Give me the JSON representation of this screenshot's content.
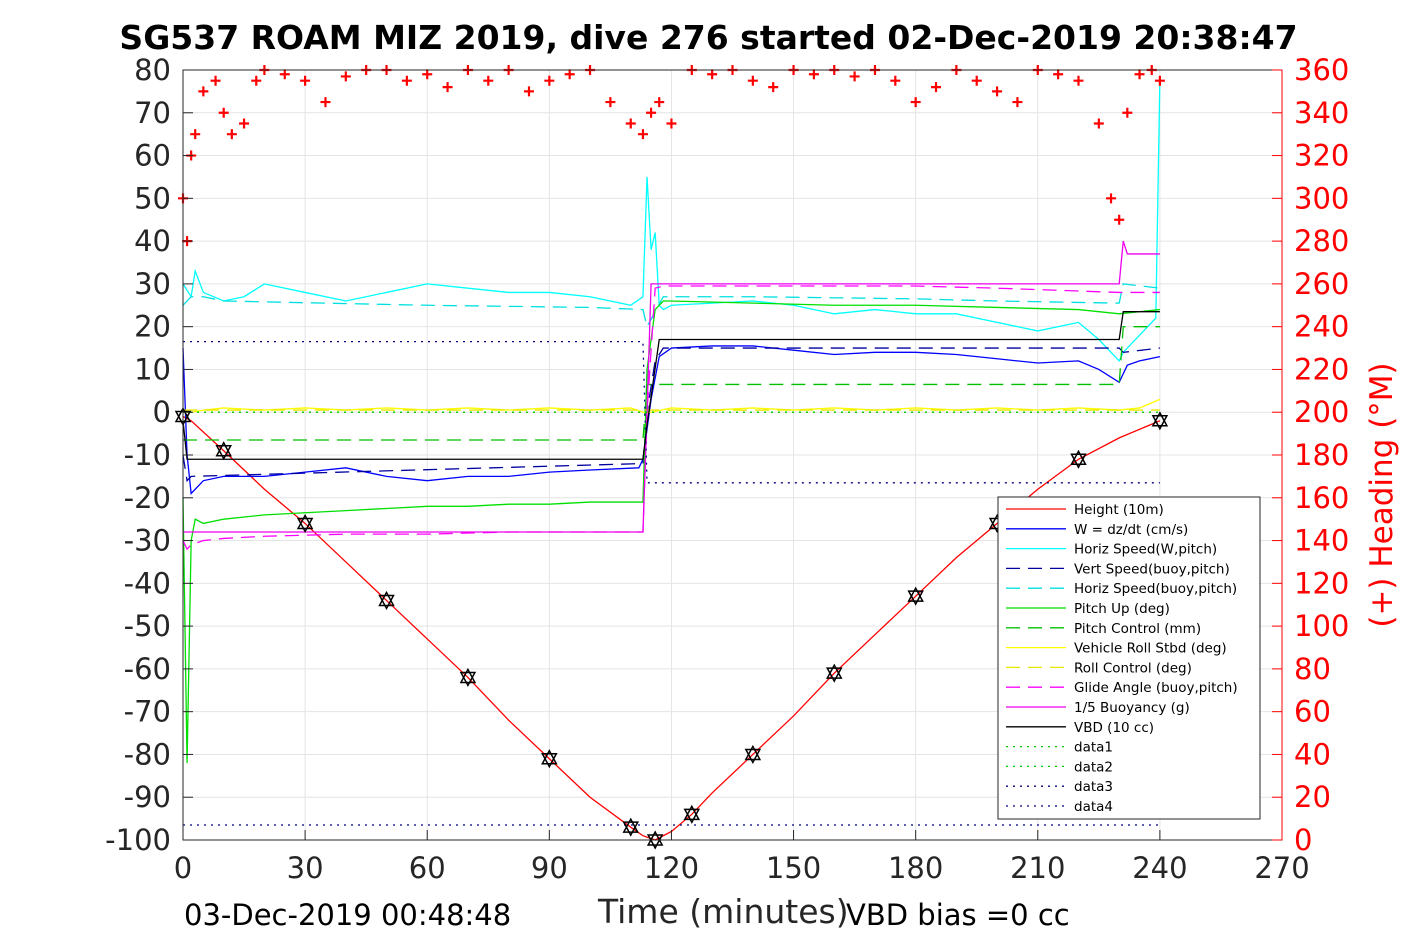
{
  "chart_data": {
    "type": "line",
    "title": "SG537 ROAM MIZ 2019, dive 276 started 02-Dec-2019 20:38:47",
    "xlabel": "Time (minutes)",
    "ylabel": "",
    "y2label": "(+) Heading (°M)",
    "xlim": [
      0,
      270
    ],
    "ylim": [
      -100,
      80
    ],
    "y2lim": [
      0,
      360
    ],
    "xticks": [
      "0",
      "30",
      "60",
      "90",
      "120",
      "150",
      "180",
      "210",
      "240",
      "270"
    ],
    "yticks": [
      "80",
      "70",
      "60",
      "50",
      "40",
      "30",
      "20",
      "10",
      "0",
      "-10",
      "-20",
      "-30",
      "-40",
      "-50",
      "-60",
      "-70",
      "-80",
      "-90",
      "-100"
    ],
    "y2ticks": [
      "360",
      "340",
      "320",
      "300",
      "280",
      "260",
      "240",
      "220",
      "200",
      "180",
      "160",
      "140",
      "120",
      "100",
      "80",
      "60",
      "40",
      "20",
      "0"
    ],
    "grid": true,
    "legend_position": "bottom-right",
    "footer_left": "03-Dec-2019 00:48:48",
    "footer_right": "VBD bias =0 cc",
    "colors": {
      "height": "#ff0000",
      "w": "#0000ff",
      "horiz_w": "#00ffff",
      "vert_buoy": "#0000a0",
      "horiz_buoy": "#00e0e0",
      "pitch": "#00e000",
      "pitch_ctrl": "#00c000",
      "roll": "#ffff00",
      "roll_ctrl": "#e8e800",
      "glide": "#ff00ff",
      "buoyancy": "#ee00ee",
      "vbd": "#000000",
      "heading": "#ff0000",
      "data12": "#00cc00",
      "data34": "#000080"
    },
    "legend": [
      {
        "label": "Height (10m)",
        "color": "#ff0000",
        "style": "solid"
      },
      {
        "label": "W = dz/dt (cm/s)",
        "color": "#0000ff",
        "style": "solid"
      },
      {
        "label": "Horiz Speed(W,pitch)",
        "color": "#00ffff",
        "style": "solid"
      },
      {
        "label": "Vert Speed(buoy,pitch)",
        "color": "#0000a0",
        "style": "dashed"
      },
      {
        "label": "Horiz Speed(buoy,pitch)",
        "color": "#00e0e0",
        "style": "dashed"
      },
      {
        "label": "Pitch Up (deg)",
        "color": "#00e000",
        "style": "solid"
      },
      {
        "label": "Pitch Control (mm)",
        "color": "#00c000",
        "style": "dashed"
      },
      {
        "label": "Vehicle Roll Stbd (deg)",
        "color": "#ffff00",
        "style": "solid"
      },
      {
        "label": "Roll Control (deg)",
        "color": "#e8e800",
        "style": "dashed"
      },
      {
        "label": "Glide Angle (buoy,pitch)",
        "color": "#ff00ff",
        "style": "dashed"
      },
      {
        "label": "1/5 Buoyancy (g)",
        "color": "#ee00ee",
        "style": "solid"
      },
      {
        "label": "VBD (10 cc)",
        "color": "#000000",
        "style": "solid"
      },
      {
        "label": "data1",
        "color": "#00cc00",
        "style": "dotted"
      },
      {
        "label": "data2",
        "color": "#00cc00",
        "style": "dotted"
      },
      {
        "label": "data3",
        "color": "#000080",
        "style": "dotted"
      },
      {
        "label": "data4",
        "color": "#000080",
        "style": "dotted"
      }
    ],
    "series": [
      {
        "name": "Height (10m)",
        "x": [
          0,
          2,
          10,
          20,
          30,
          40,
          50,
          60,
          70,
          80,
          90,
          100,
          110,
          113,
          116,
          120,
          125,
          130,
          140,
          150,
          160,
          170,
          180,
          190,
          200,
          210,
          220,
          230,
          240
        ],
        "y": [
          -1,
          -2,
          -9,
          -18,
          -26,
          -35,
          -44,
          -53,
          -62,
          -72,
          -81,
          -90,
          -97,
          -99,
          -100,
          -98,
          -94,
          -89,
          -80,
          -71,
          -61,
          -52,
          -43,
          -34,
          -26,
          -18,
          -11,
          -6,
          -2
        ]
      },
      {
        "name": "W = dz/dt (cm/s)",
        "x": [
          0,
          1,
          2,
          5,
          10,
          20,
          30,
          40,
          50,
          60,
          70,
          80,
          90,
          100,
          112,
          113,
          115,
          117,
          120,
          130,
          140,
          150,
          160,
          170,
          180,
          190,
          200,
          210,
          220,
          225,
          230,
          232,
          235,
          240
        ],
        "y": [
          15,
          -10,
          -19,
          -16,
          -15,
          -15,
          -14,
          -13,
          -15,
          -16,
          -15,
          -15,
          -14,
          -13.5,
          -13,
          -11,
          3,
          13,
          15,
          15.5,
          15.5,
          14.5,
          13.5,
          14,
          14,
          13.5,
          12.5,
          11.5,
          12,
          10,
          7,
          11,
          12,
          13
        ]
      },
      {
        "name": "Horiz Speed(W,pitch)",
        "x": [
          0,
          2,
          3,
          5,
          10,
          15,
          20,
          30,
          40,
          50,
          60,
          70,
          80,
          90,
          100,
          110,
          113,
          114,
          115,
          116,
          117,
          118,
          120,
          130,
          140,
          150,
          160,
          170,
          180,
          190,
          200,
          210,
          220,
          225,
          230,
          231,
          235,
          239,
          240
        ],
        "y": [
          30,
          27,
          33,
          28,
          26,
          27,
          30,
          28,
          26,
          28,
          30,
          29,
          28,
          28,
          27,
          25,
          27,
          55,
          38,
          42,
          25,
          24,
          25,
          25.5,
          26,
          25,
          23,
          24,
          23,
          23,
          21,
          19,
          21,
          17,
          12,
          14,
          18,
          22,
          78
        ]
      },
      {
        "name": "Vert Speed(buoy,pitch)",
        "x": [
          0,
          1,
          2,
          113,
          114,
          116,
          118,
          230,
          231,
          240
        ],
        "y": [
          -10,
          -16,
          -15,
          -12,
          0,
          12,
          15,
          15,
          14,
          15
        ]
      },
      {
        "name": "Horiz Speed(buoy,pitch)",
        "x": [
          0,
          2,
          5,
          10,
          60,
          100,
          113,
          114,
          118,
          120,
          140,
          180,
          200,
          230,
          231,
          240
        ],
        "y": [
          25,
          27,
          27,
          26,
          25,
          24.5,
          24,
          20,
          27,
          27,
          27,
          26.5,
          26,
          25.5,
          30,
          29
        ]
      },
      {
        "name": "Pitch Up (deg)",
        "x": [
          0,
          1,
          2,
          3,
          5,
          10,
          20,
          30,
          40,
          50,
          60,
          70,
          80,
          90,
          100,
          110,
          113,
          114,
          116,
          118,
          120,
          140,
          160,
          180,
          200,
          220,
          230,
          240
        ],
        "y": [
          -20,
          -82,
          -30,
          -25,
          -26,
          -25,
          -24,
          -23.5,
          -23,
          -22.5,
          -22,
          -22,
          -21.5,
          -21.5,
          -21,
          -21,
          -21,
          10,
          24,
          26,
          26,
          25.5,
          25,
          25,
          24.5,
          24,
          23,
          24
        ]
      },
      {
        "name": "Pitch Control (mm)",
        "x": [
          0,
          2,
          113,
          114,
          120,
          230,
          231,
          240
        ],
        "y": [
          -6.5,
          -6.5,
          -6.5,
          6.5,
          6.5,
          6.5,
          20,
          20
        ]
      },
      {
        "name": "Vehicle Roll Stbd (deg)",
        "x": [
          0,
          2,
          5,
          10,
          20,
          30,
          40,
          50,
          60,
          70,
          80,
          90,
          100,
          110,
          113,
          115,
          120,
          130,
          140,
          150,
          160,
          170,
          180,
          190,
          200,
          210,
          220,
          230,
          235,
          240
        ],
        "y": [
          0,
          0,
          0.5,
          1,
          0.5,
          1,
          0.5,
          1,
          0.5,
          1,
          0.5,
          1,
          0.5,
          1,
          0,
          0,
          1,
          0.5,
          1,
          0.5,
          1,
          0.5,
          1,
          0.5,
          1,
          0.5,
          1,
          0.5,
          1,
          3
        ]
      },
      {
        "name": "Roll Control (deg)",
        "x": [
          0,
          240
        ],
        "y": [
          0.5,
          0.5
        ]
      },
      {
        "name": "Glide Angle (buoy,pitch)",
        "x": [
          0,
          1,
          2,
          5,
          10,
          20,
          40,
          60,
          80,
          100,
          113,
          114,
          116,
          118,
          140,
          180,
          200,
          230,
          240
        ],
        "y": [
          -30,
          -32,
          -31,
          -30,
          -29.5,
          -29,
          -28.5,
          -28.5,
          -28,
          -28,
          -28,
          0,
          29,
          29.5,
          29.5,
          29.5,
          29,
          28,
          28
        ]
      },
      {
        "name": "1/5 Buoyancy (g)",
        "x": [
          0,
          113,
          114,
          115,
          116,
          230,
          231,
          232,
          240
        ],
        "y": [
          -28,
          -28,
          0,
          30,
          30,
          30,
          40,
          37,
          37
        ]
      },
      {
        "name": "VBD (10 cc)",
        "x": [
          0,
          1,
          2,
          113,
          114,
          117,
          118,
          230,
          231,
          240
        ],
        "y": [
          -2,
          -11,
          -11,
          -11,
          -3,
          17,
          17,
          17,
          23.5,
          23.5
        ]
      },
      {
        "name": "data1",
        "x": [
          0,
          240
        ],
        "y": [
          0,
          0
        ]
      },
      {
        "name": "data2",
        "x": [
          0,
          240
        ],
        "y": [
          0,
          0
        ]
      },
      {
        "name": "data3",
        "x": [
          0,
          113,
          114,
          240
        ],
        "y": [
          16.5,
          16.5,
          -16.5,
          -16.5
        ]
      },
      {
        "name": "data4",
        "x": [
          0,
          113,
          114,
          240
        ],
        "y": [
          -96.5,
          -96.5,
          -96.5,
          -96.5
        ]
      }
    ],
    "heading_series": {
      "name": "(+) Heading (°M)",
      "x": [
        0,
        1,
        2,
        3,
        5,
        8,
        10,
        12,
        15,
        18,
        20,
        25,
        30,
        35,
        40,
        45,
        50,
        55,
        60,
        65,
        70,
        75,
        80,
        85,
        90,
        95,
        100,
        105,
        110,
        113,
        115,
        117,
        120,
        125,
        130,
        135,
        140,
        145,
        150,
        155,
        160,
        165,
        170,
        175,
        180,
        185,
        190,
        195,
        200,
        205,
        210,
        215,
        220,
        225,
        228,
        230,
        232,
        235,
        238,
        240
      ],
      "y": [
        300,
        280,
        320,
        330,
        350,
        355,
        340,
        330,
        335,
        355,
        360,
        358,
        355,
        345,
        357,
        360,
        360,
        355,
        358,
        352,
        360,
        355,
        360,
        350,
        355,
        358,
        360,
        345,
        335,
        330,
        340,
        345,
        335,
        360,
        358,
        360,
        355,
        352,
        360,
        358,
        360,
        357,
        360,
        355,
        345,
        352,
        360,
        355,
        350,
        345,
        360,
        358,
        355,
        335,
        300,
        290,
        340,
        358,
        360,
        355
      ]
    }
  }
}
